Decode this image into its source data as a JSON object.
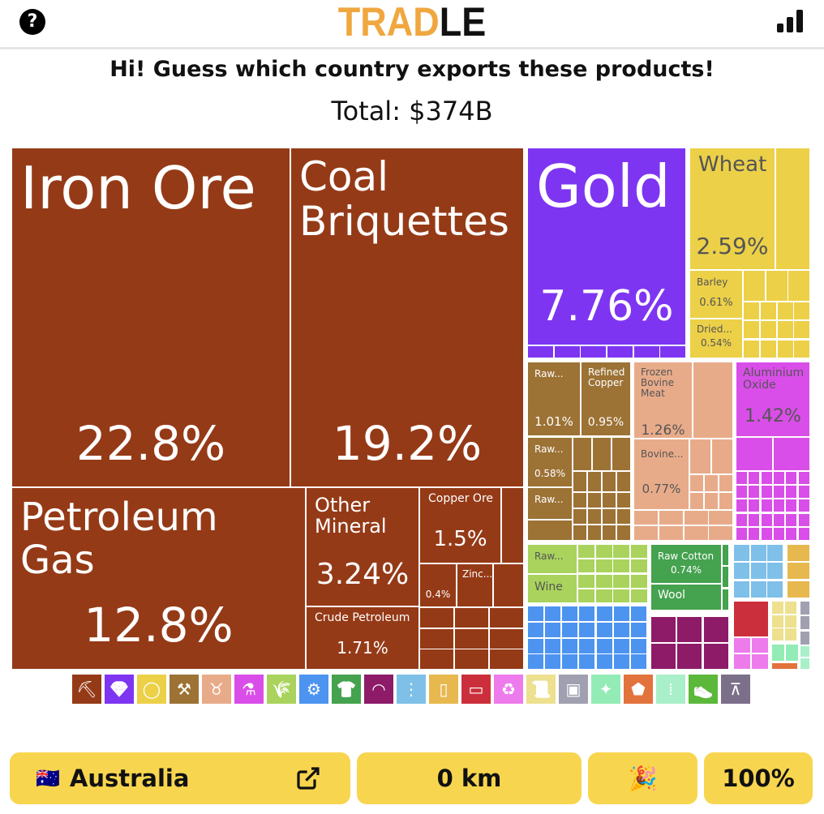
{
  "header": {
    "help_icon": "question-circle-icon",
    "logo_part1": "TRAD",
    "logo_part2": "LE",
    "stats_icon": "bar-chart-icon"
  },
  "prompt": "Hi! Guess which country exports these products!",
  "total": "Total: $374B",
  "colors": {
    "minerals": "#953a17",
    "precious_metals": "#7e35f2",
    "foodstuffs": "#ecd048",
    "metals": "#9c7235",
    "animal_products": "#e8ab89",
    "chemicals": "#d94ee8",
    "vegetable_products": "#a9d35c",
    "machines": "#4d94f0",
    "textiles": "#45a24f",
    "instruments": "#8d1b68",
    "transportation": "#7ec0e8",
    "animal_veg_byproducts": "#e6b84e",
    "plastics": "#cc2f3c",
    "paper_goods": "#ee7bec",
    "paper": "#ede08f",
    "miscellaneous": "#a0a0b0",
    "hides": "#93ecb6",
    "stone": "#e2733c",
    "weapons": "#a9efc9",
    "footwear": "#5cb83a",
    "arts": "#7b6f8a",
    "accent": "#f0a73f",
    "button": "#f8d54e"
  },
  "treemap": {
    "iron_ore": {
      "label": "Iron Ore",
      "pct": "22.8%"
    },
    "coal": {
      "label": "Coal\nBriquettes",
      "pct": "19.2%"
    },
    "petroleum_gas": {
      "label": "Petroleum\nGas",
      "pct": "12.8%"
    },
    "other_mineral": {
      "label": "Other\nMineral",
      "pct": "3.24%"
    },
    "crude": {
      "label": "Crude Petroleum",
      "pct": "1.71%"
    },
    "copper_ore": {
      "label": "Copper Ore",
      "pct": "1.5%"
    },
    "small_04": {
      "pct": "0.4%"
    },
    "zinc": {
      "label": "Zinc..."
    },
    "gold": {
      "label": "Gold",
      "pct": "7.76%"
    },
    "wheat": {
      "label": "Wheat",
      "pct": "2.59%"
    },
    "barley": {
      "label": "Barley",
      "pct": "0.61%"
    },
    "dried": {
      "label": "Dried...",
      "pct": "0.54%"
    },
    "raw1": {
      "label": "Raw...",
      "pct": "1.01%"
    },
    "refined_copper": {
      "label": "Refined\nCopper",
      "pct": "0.95%"
    },
    "raw2": {
      "label": "Raw...",
      "pct": "0.58%"
    },
    "raw3": {
      "label": "Raw..."
    },
    "frozen_bovine": {
      "label": "Frozen\nBovine\nMeat",
      "pct": "1.26%"
    },
    "bovine": {
      "label": "Bovine...",
      "pct": "0.77%"
    },
    "aluminium_oxide": {
      "label": "Aluminium\nOxide",
      "pct": "1.42%"
    },
    "raw_veg": {
      "label": "Raw..."
    },
    "wine": {
      "label": "Wine"
    },
    "raw_cotton": {
      "label": "Raw Cotton",
      "pct": "0.74%"
    },
    "wool": {
      "label": "Wool"
    }
  },
  "legend": [
    {
      "icon": "pickaxe-icon",
      "color": "#953a17",
      "glyph": "⛏"
    },
    {
      "icon": "diamond-icon",
      "color": "#7e35f2",
      "glyph": "💎"
    },
    {
      "icon": "tomato-icon",
      "color": "#ecd048",
      "glyph": "◯"
    },
    {
      "icon": "anvil-icon",
      "color": "#9c7235",
      "glyph": "⚒"
    },
    {
      "icon": "cow-icon",
      "color": "#e8ab89",
      "glyph": "♉"
    },
    {
      "icon": "flask-icon",
      "color": "#d94ee8",
      "glyph": "⚗"
    },
    {
      "icon": "wheat-icon",
      "color": "#a9d35c",
      "glyph": "🌾"
    },
    {
      "icon": "gear-icon",
      "color": "#4d94f0",
      "glyph": "⚙"
    },
    {
      "icon": "shirt-icon",
      "color": "#45a24f",
      "glyph": "👕"
    },
    {
      "icon": "gauge-icon",
      "color": "#8d1b68",
      "glyph": "◠"
    },
    {
      "icon": "road-icon",
      "color": "#7ec0e8",
      "glyph": "⋮"
    },
    {
      "icon": "bottle-icon",
      "color": "#e6b84e",
      "glyph": "▯"
    },
    {
      "icon": "pipe-icon",
      "color": "#cc2f3c",
      "glyph": "▭"
    },
    {
      "icon": "recycle-icon",
      "color": "#ee7bec",
      "glyph": "♻"
    },
    {
      "icon": "scroll-icon",
      "color": "#ede08f",
      "glyph": "📜"
    },
    {
      "icon": "box-icon",
      "color": "#a0a0b0",
      "glyph": "▣"
    },
    {
      "icon": "leather-hide-icon",
      "color": "#93ecb6",
      "glyph": "✦"
    },
    {
      "icon": "gem-stone-icon",
      "color": "#e2733c",
      "glyph": "⬟"
    },
    {
      "icon": "bullets-icon",
      "color": "#a9efc9",
      "glyph": "⁞"
    },
    {
      "icon": "shoe-icon",
      "color": "#5cb83a",
      "glyph": "👟"
    },
    {
      "icon": "easel-icon",
      "color": "#7b6f8a",
      "glyph": "⊼"
    }
  ],
  "guess": {
    "flag": "🇦🇺",
    "country": "Australia",
    "link_icon": "external-link-icon",
    "distance": "0 km",
    "emoji": "🎉",
    "proximity": "100%"
  }
}
